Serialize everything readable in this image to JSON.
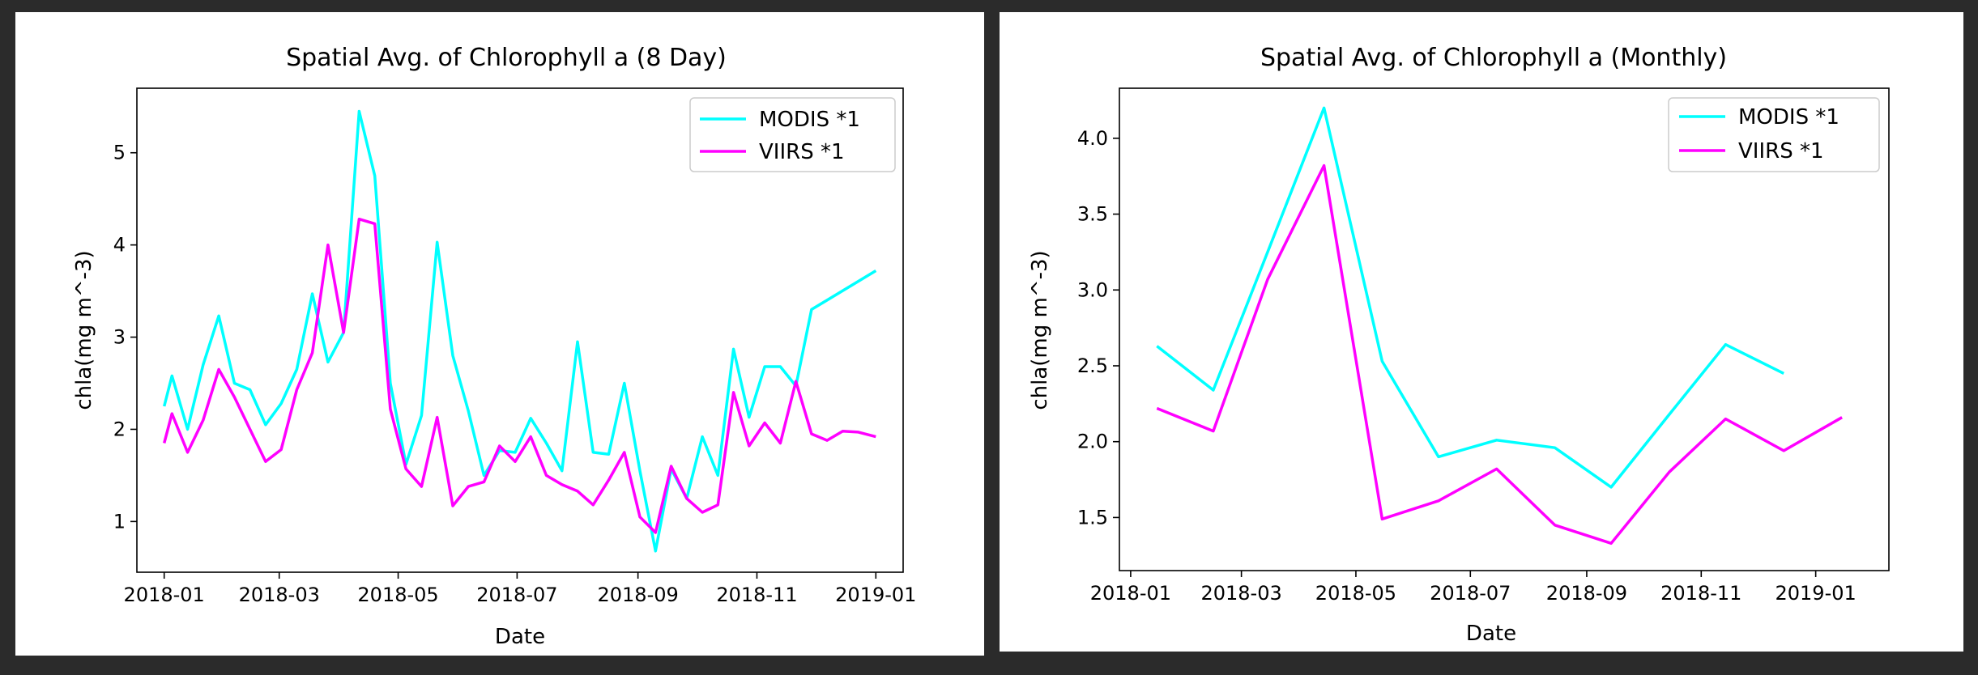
{
  "chart_data": [
    {
      "type": "line",
      "title": "Spatial Avg. of Chlorophyll a  (8 Day)",
      "xlabel": "Date",
      "ylabel": "chla(mg m^-3)",
      "xlim": [
        "2017-12-18",
        "2019-01-15"
      ],
      "ylim": [
        0.45,
        5.7
      ],
      "xticks": [
        "2018-01",
        "2018-03",
        "2018-05",
        "2018-07",
        "2018-09",
        "2018-11",
        "2019-01"
      ],
      "yticks": [
        1,
        2,
        3,
        4,
        5
      ],
      "legend": "upper right",
      "grid": false,
      "series": [
        {
          "name": "MODIS *1",
          "color": "#00ffff",
          "points": [
            [
              "2018-01-01",
              2.25
            ],
            [
              "2018-01-05",
              2.58
            ],
            [
              "2018-01-13",
              2.0
            ],
            [
              "2018-01-21",
              2.7
            ],
            [
              "2018-01-29",
              3.23
            ],
            [
              "2018-02-06",
              2.5
            ],
            [
              "2018-02-14",
              2.43
            ],
            [
              "2018-02-22",
              2.05
            ],
            [
              "2018-03-02",
              2.28
            ],
            [
              "2018-03-10",
              2.65
            ],
            [
              "2018-03-18",
              3.47
            ],
            [
              "2018-03-26",
              2.73
            ],
            [
              "2018-04-03",
              3.05
            ],
            [
              "2018-04-11",
              5.45
            ],
            [
              "2018-04-19",
              4.75
            ],
            [
              "2018-04-27",
              2.5
            ],
            [
              "2018-05-05",
              1.62
            ],
            [
              "2018-05-13",
              2.15
            ],
            [
              "2018-05-21",
              4.03
            ],
            [
              "2018-05-29",
              2.8
            ],
            [
              "2018-06-06",
              2.2
            ],
            [
              "2018-06-14",
              1.5
            ],
            [
              "2018-06-22",
              1.77
            ],
            [
              "2018-06-30",
              1.75
            ],
            [
              "2018-07-08",
              2.12
            ],
            [
              "2018-07-16",
              1.85
            ],
            [
              "2018-07-24",
              1.55
            ],
            [
              "2018-08-01",
              2.95
            ],
            [
              "2018-08-09",
              1.75
            ],
            [
              "2018-08-17",
              1.73
            ],
            [
              "2018-08-25",
              2.5
            ],
            [
              "2018-09-02",
              1.55
            ],
            [
              "2018-09-10",
              0.68
            ],
            [
              "2018-09-18",
              1.57
            ],
            [
              "2018-09-26",
              1.25
            ],
            [
              "2018-10-04",
              1.92
            ],
            [
              "2018-10-12",
              1.5
            ],
            [
              "2018-10-20",
              2.87
            ],
            [
              "2018-10-28",
              2.13
            ],
            [
              "2018-11-05",
              2.68
            ],
            [
              "2018-11-13",
              2.68
            ],
            [
              "2018-11-21",
              2.47
            ],
            [
              "2018-11-29",
              3.3
            ],
            [
              "2019-01-01",
              3.72
            ]
          ]
        },
        {
          "name": "VIIRS *1",
          "color": "#ff00ff",
          "points": [
            [
              "2018-01-01",
              1.85
            ],
            [
              "2018-01-05",
              2.17
            ],
            [
              "2018-01-13",
              1.75
            ],
            [
              "2018-01-21",
              2.1
            ],
            [
              "2018-01-29",
              2.65
            ],
            [
              "2018-02-06",
              2.35
            ],
            [
              "2018-02-14",
              2.0
            ],
            [
              "2018-02-22",
              1.65
            ],
            [
              "2018-03-02",
              1.78
            ],
            [
              "2018-03-10",
              2.43
            ],
            [
              "2018-03-18",
              2.83
            ],
            [
              "2018-03-26",
              4.0
            ],
            [
              "2018-04-03",
              3.05
            ],
            [
              "2018-04-11",
              4.28
            ],
            [
              "2018-04-19",
              4.23
            ],
            [
              "2018-04-27",
              2.22
            ],
            [
              "2018-05-05",
              1.57
            ],
            [
              "2018-05-13",
              1.38
            ],
            [
              "2018-05-21",
              2.13
            ],
            [
              "2018-05-29",
              1.17
            ],
            [
              "2018-06-06",
              1.38
            ],
            [
              "2018-06-14",
              1.43
            ],
            [
              "2018-06-22",
              1.82
            ],
            [
              "2018-06-30",
              1.65
            ],
            [
              "2018-07-08",
              1.92
            ],
            [
              "2018-07-16",
              1.5
            ],
            [
              "2018-07-24",
              1.4
            ],
            [
              "2018-08-01",
              1.33
            ],
            [
              "2018-08-09",
              1.18
            ],
            [
              "2018-08-17",
              1.45
            ],
            [
              "2018-08-25",
              1.75
            ],
            [
              "2018-09-02",
              1.05
            ],
            [
              "2018-09-10",
              0.88
            ],
            [
              "2018-09-18",
              1.6
            ],
            [
              "2018-09-26",
              1.25
            ],
            [
              "2018-10-04",
              1.1
            ],
            [
              "2018-10-12",
              1.18
            ],
            [
              "2018-10-20",
              2.4
            ],
            [
              "2018-10-28",
              1.82
            ],
            [
              "2018-11-05",
              2.07
            ],
            [
              "2018-11-13",
              1.85
            ],
            [
              "2018-11-21",
              2.52
            ],
            [
              "2018-11-29",
              1.95
            ],
            [
              "2018-12-07",
              1.88
            ],
            [
              "2018-12-15",
              1.98
            ],
            [
              "2018-12-23",
              1.97
            ],
            [
              "2019-01-01",
              1.92
            ]
          ]
        }
      ]
    },
    {
      "type": "line",
      "title": "Spatial Avg. of Chlorophyll a  (Monthly)",
      "xlabel": "Date",
      "ylabel": "chla(mg m^-3)",
      "xlim": [
        "2017-12-26",
        "2019-02-09"
      ],
      "ylim": [
        1.15,
        4.33
      ],
      "xticks": [
        "2018-01",
        "2018-03",
        "2018-05",
        "2018-07",
        "2018-09",
        "2018-11",
        "2019-01"
      ],
      "yticks": [
        1.5,
        2.0,
        2.5,
        3.0,
        3.5,
        4.0
      ],
      "legend": "upper right",
      "grid": false,
      "series": [
        {
          "name": "MODIS *1",
          "color": "#00ffff",
          "points": [
            [
              "2018-01-15",
              2.63
            ],
            [
              "2018-02-14",
              2.34
            ],
            [
              "2018-03-15",
              3.25
            ],
            [
              "2018-04-14",
              4.2
            ],
            [
              "2018-05-15",
              2.53
            ],
            [
              "2018-06-14",
              1.9
            ],
            [
              "2018-07-15",
              2.01
            ],
            [
              "2018-08-15",
              1.96
            ],
            [
              "2018-09-14",
              1.7
            ],
            [
              "2018-10-15",
              2.18
            ],
            [
              "2018-11-14",
              2.64
            ],
            [
              "2018-12-15",
              2.45
            ]
          ]
        },
        {
          "name": "VIIRS *1",
          "color": "#ff00ff",
          "points": [
            [
              "2018-01-15",
              2.22
            ],
            [
              "2018-02-14",
              2.07
            ],
            [
              "2018-03-15",
              3.07
            ],
            [
              "2018-04-14",
              3.82
            ],
            [
              "2018-05-15",
              1.49
            ],
            [
              "2018-06-14",
              1.61
            ],
            [
              "2018-07-15",
              1.82
            ],
            [
              "2018-08-15",
              1.45
            ],
            [
              "2018-09-14",
              1.33
            ],
            [
              "2018-10-15",
              1.8
            ],
            [
              "2018-11-14",
              2.15
            ],
            [
              "2018-12-15",
              1.94
            ],
            [
              "2019-01-15",
              2.16
            ]
          ]
        }
      ]
    }
  ]
}
